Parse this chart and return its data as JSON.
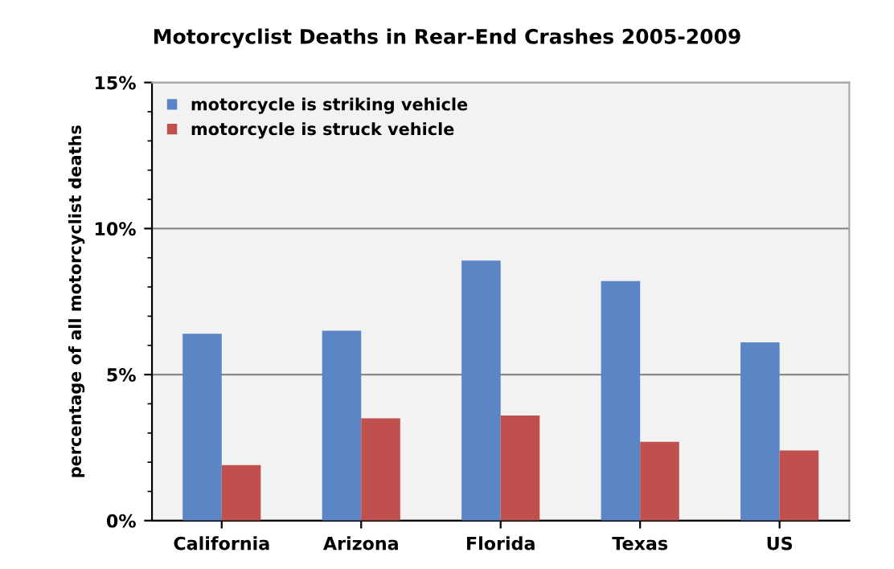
{
  "chart_data": {
    "type": "bar",
    "title": "Motorcyclist Deaths in Rear-End Crashes 2005-2009",
    "ylabel": "percentage of all motorcyclist deaths",
    "categories": [
      "California",
      "Arizona",
      "Florida",
      "Texas",
      "US"
    ],
    "series": [
      {
        "name": "motorcycle is striking vehicle",
        "color": "#5b85c4",
        "values": [
          6.4,
          6.5,
          8.9,
          8.2,
          6.1
        ]
      },
      {
        "name": "motorcycle is struck vehicle",
        "color": "#c0504d",
        "values": [
          1.9,
          3.5,
          3.6,
          2.7,
          2.4
        ]
      }
    ],
    "ylim": [
      0,
      15
    ],
    "yticks": [
      {
        "value": 0,
        "label": "0%"
      },
      {
        "value": 5,
        "label": "5%"
      },
      {
        "value": 10,
        "label": "10%"
      },
      {
        "value": 15,
        "label": "15%"
      }
    ],
    "grid": "y",
    "legend": "top left"
  }
}
